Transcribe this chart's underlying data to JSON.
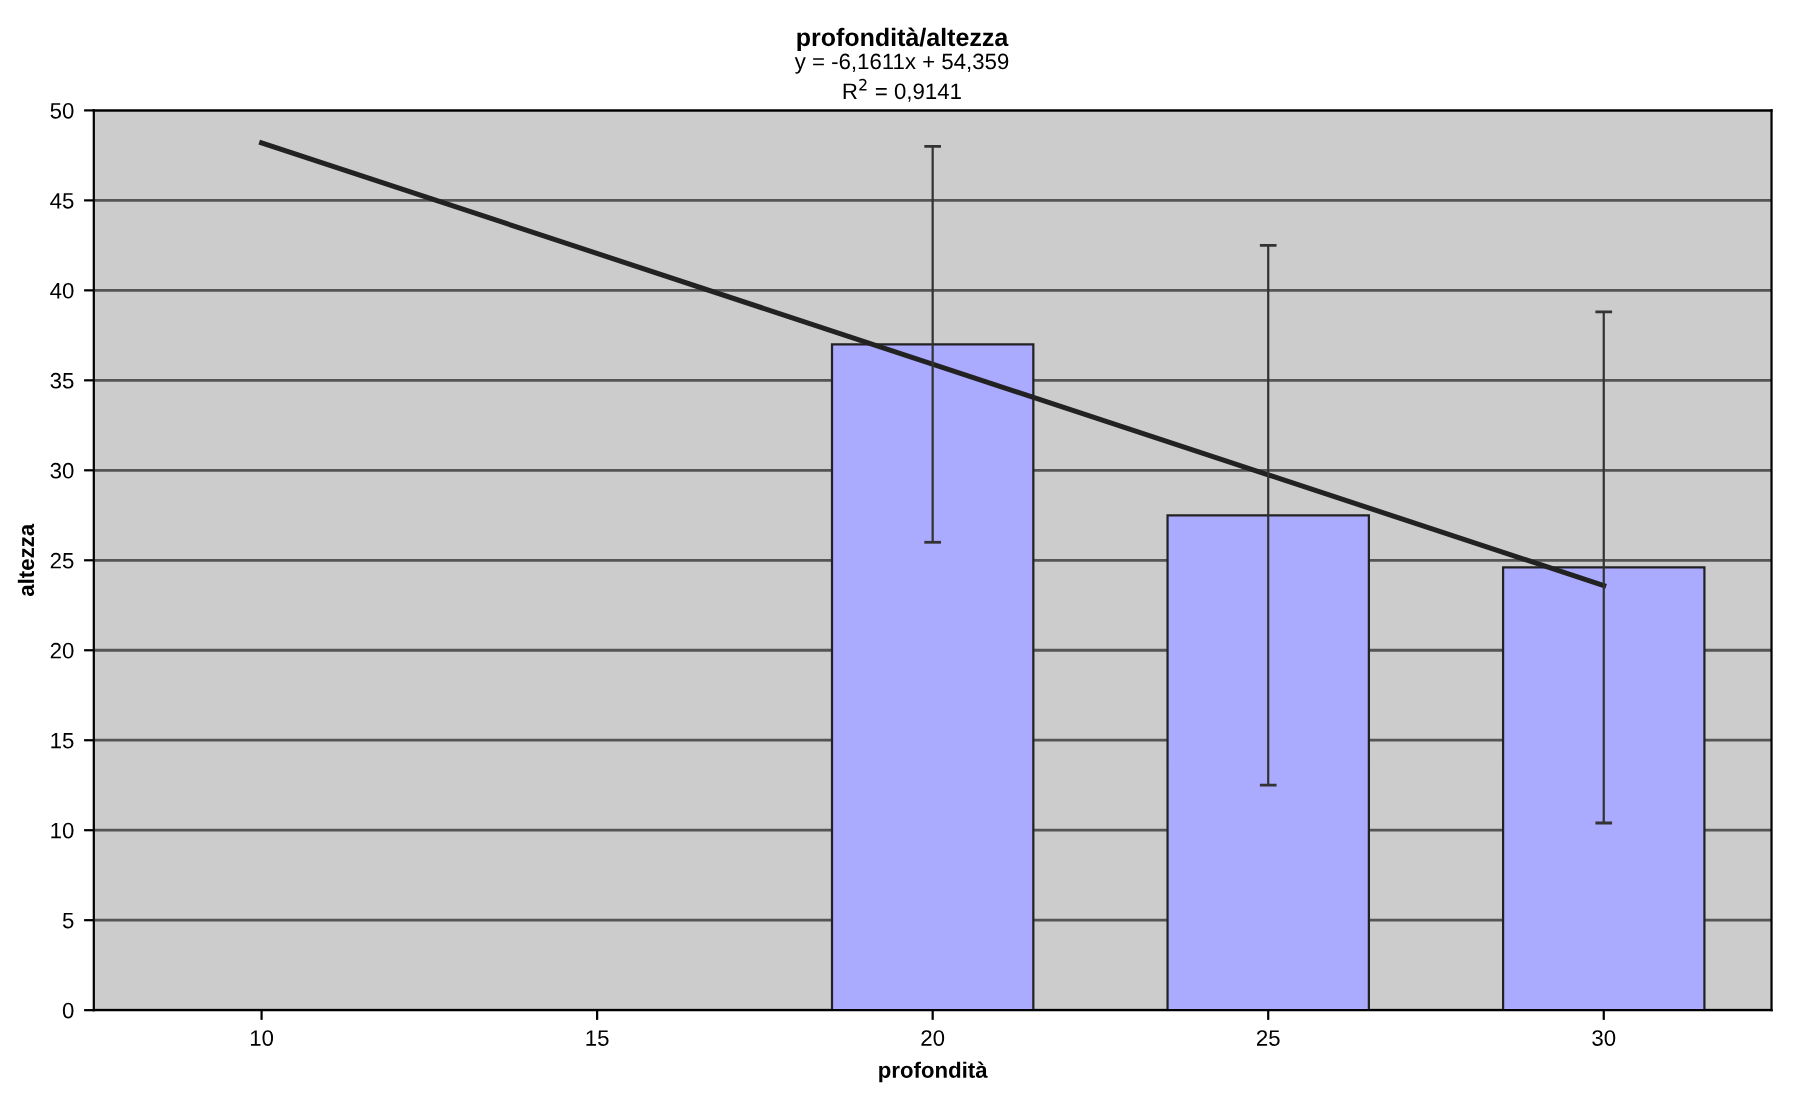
{
  "chart_data": {
    "type": "bar",
    "title": "profondità/altezza",
    "xlabel": "profondità",
    "ylabel": "altezza",
    "annotations": [
      "y = -6,1611x + 54,359",
      "R$^{2}$ = 0,9141"
    ],
    "categories": [
      "10",
      "15",
      "20",
      "25",
      "30"
    ],
    "series": [
      {
        "color": "#aaaaff",
        "values": [
          null,
          null,
          37,
          27.5,
          24.6
        ],
        "errors": [
          null,
          null,
          11,
          15,
          14.2
        ]
      },
      {
        "type": "line",
        "color": "#222222",
        "x": [
          "10",
          "30"
        ],
        "values": [
          48.2,
          23.6
        ]
      }
    ],
    "ylim": [
      0,
      50
    ],
    "yticks": [
      0,
      5,
      10,
      15,
      20,
      25,
      30,
      35,
      40,
      45,
      50
    ],
    "grid": "y",
    "legend": false
  }
}
